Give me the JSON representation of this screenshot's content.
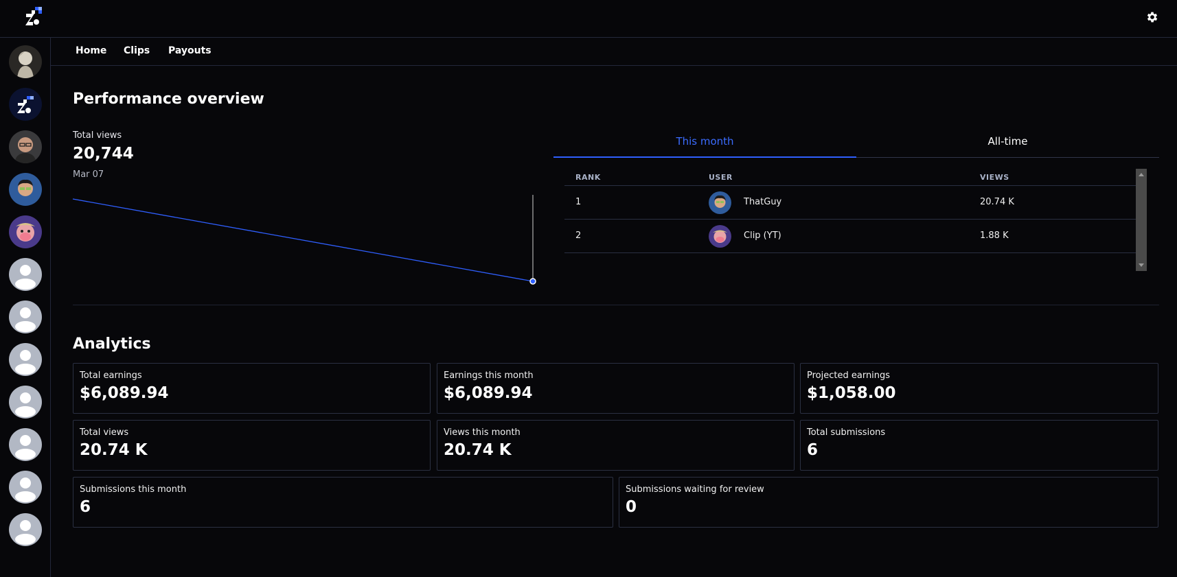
{
  "nav": {
    "home": "Home",
    "clips": "Clips",
    "payouts": "Payouts"
  },
  "performance": {
    "title": "Performance overview",
    "metric_label": "Total views",
    "metric_value": "20,744",
    "date": "Mar 07"
  },
  "leaderboard": {
    "tabs": [
      "This month",
      "All-time"
    ],
    "columns": {
      "rank": "RANK",
      "user": "USER",
      "views": "VIEWS"
    },
    "rows": [
      {
        "rank": "1",
        "user": "ThatGuy",
        "views": "20.74 K"
      },
      {
        "rank": "2",
        "user": "Clip (YT)",
        "views": "1.88 K"
      }
    ]
  },
  "analytics": {
    "title": "Analytics",
    "cards": [
      {
        "label": "Total earnings",
        "value": "$6,089.94"
      },
      {
        "label": "Earnings this month",
        "value": "$6,089.94"
      },
      {
        "label": "Projected earnings",
        "value": "$1,058.00"
      },
      {
        "label": "Total views",
        "value": "20.74 K"
      },
      {
        "label": "Views this month",
        "value": "20.74 K"
      },
      {
        "label": "Total submissions",
        "value": "6"
      },
      {
        "label": "Submissions this month",
        "value": "6"
      },
      {
        "label": "Submissions waiting for review",
        "value": "0"
      }
    ]
  },
  "colors": {
    "accent": "#2f5fff",
    "background": "#07070a",
    "border": "#2b3042"
  }
}
